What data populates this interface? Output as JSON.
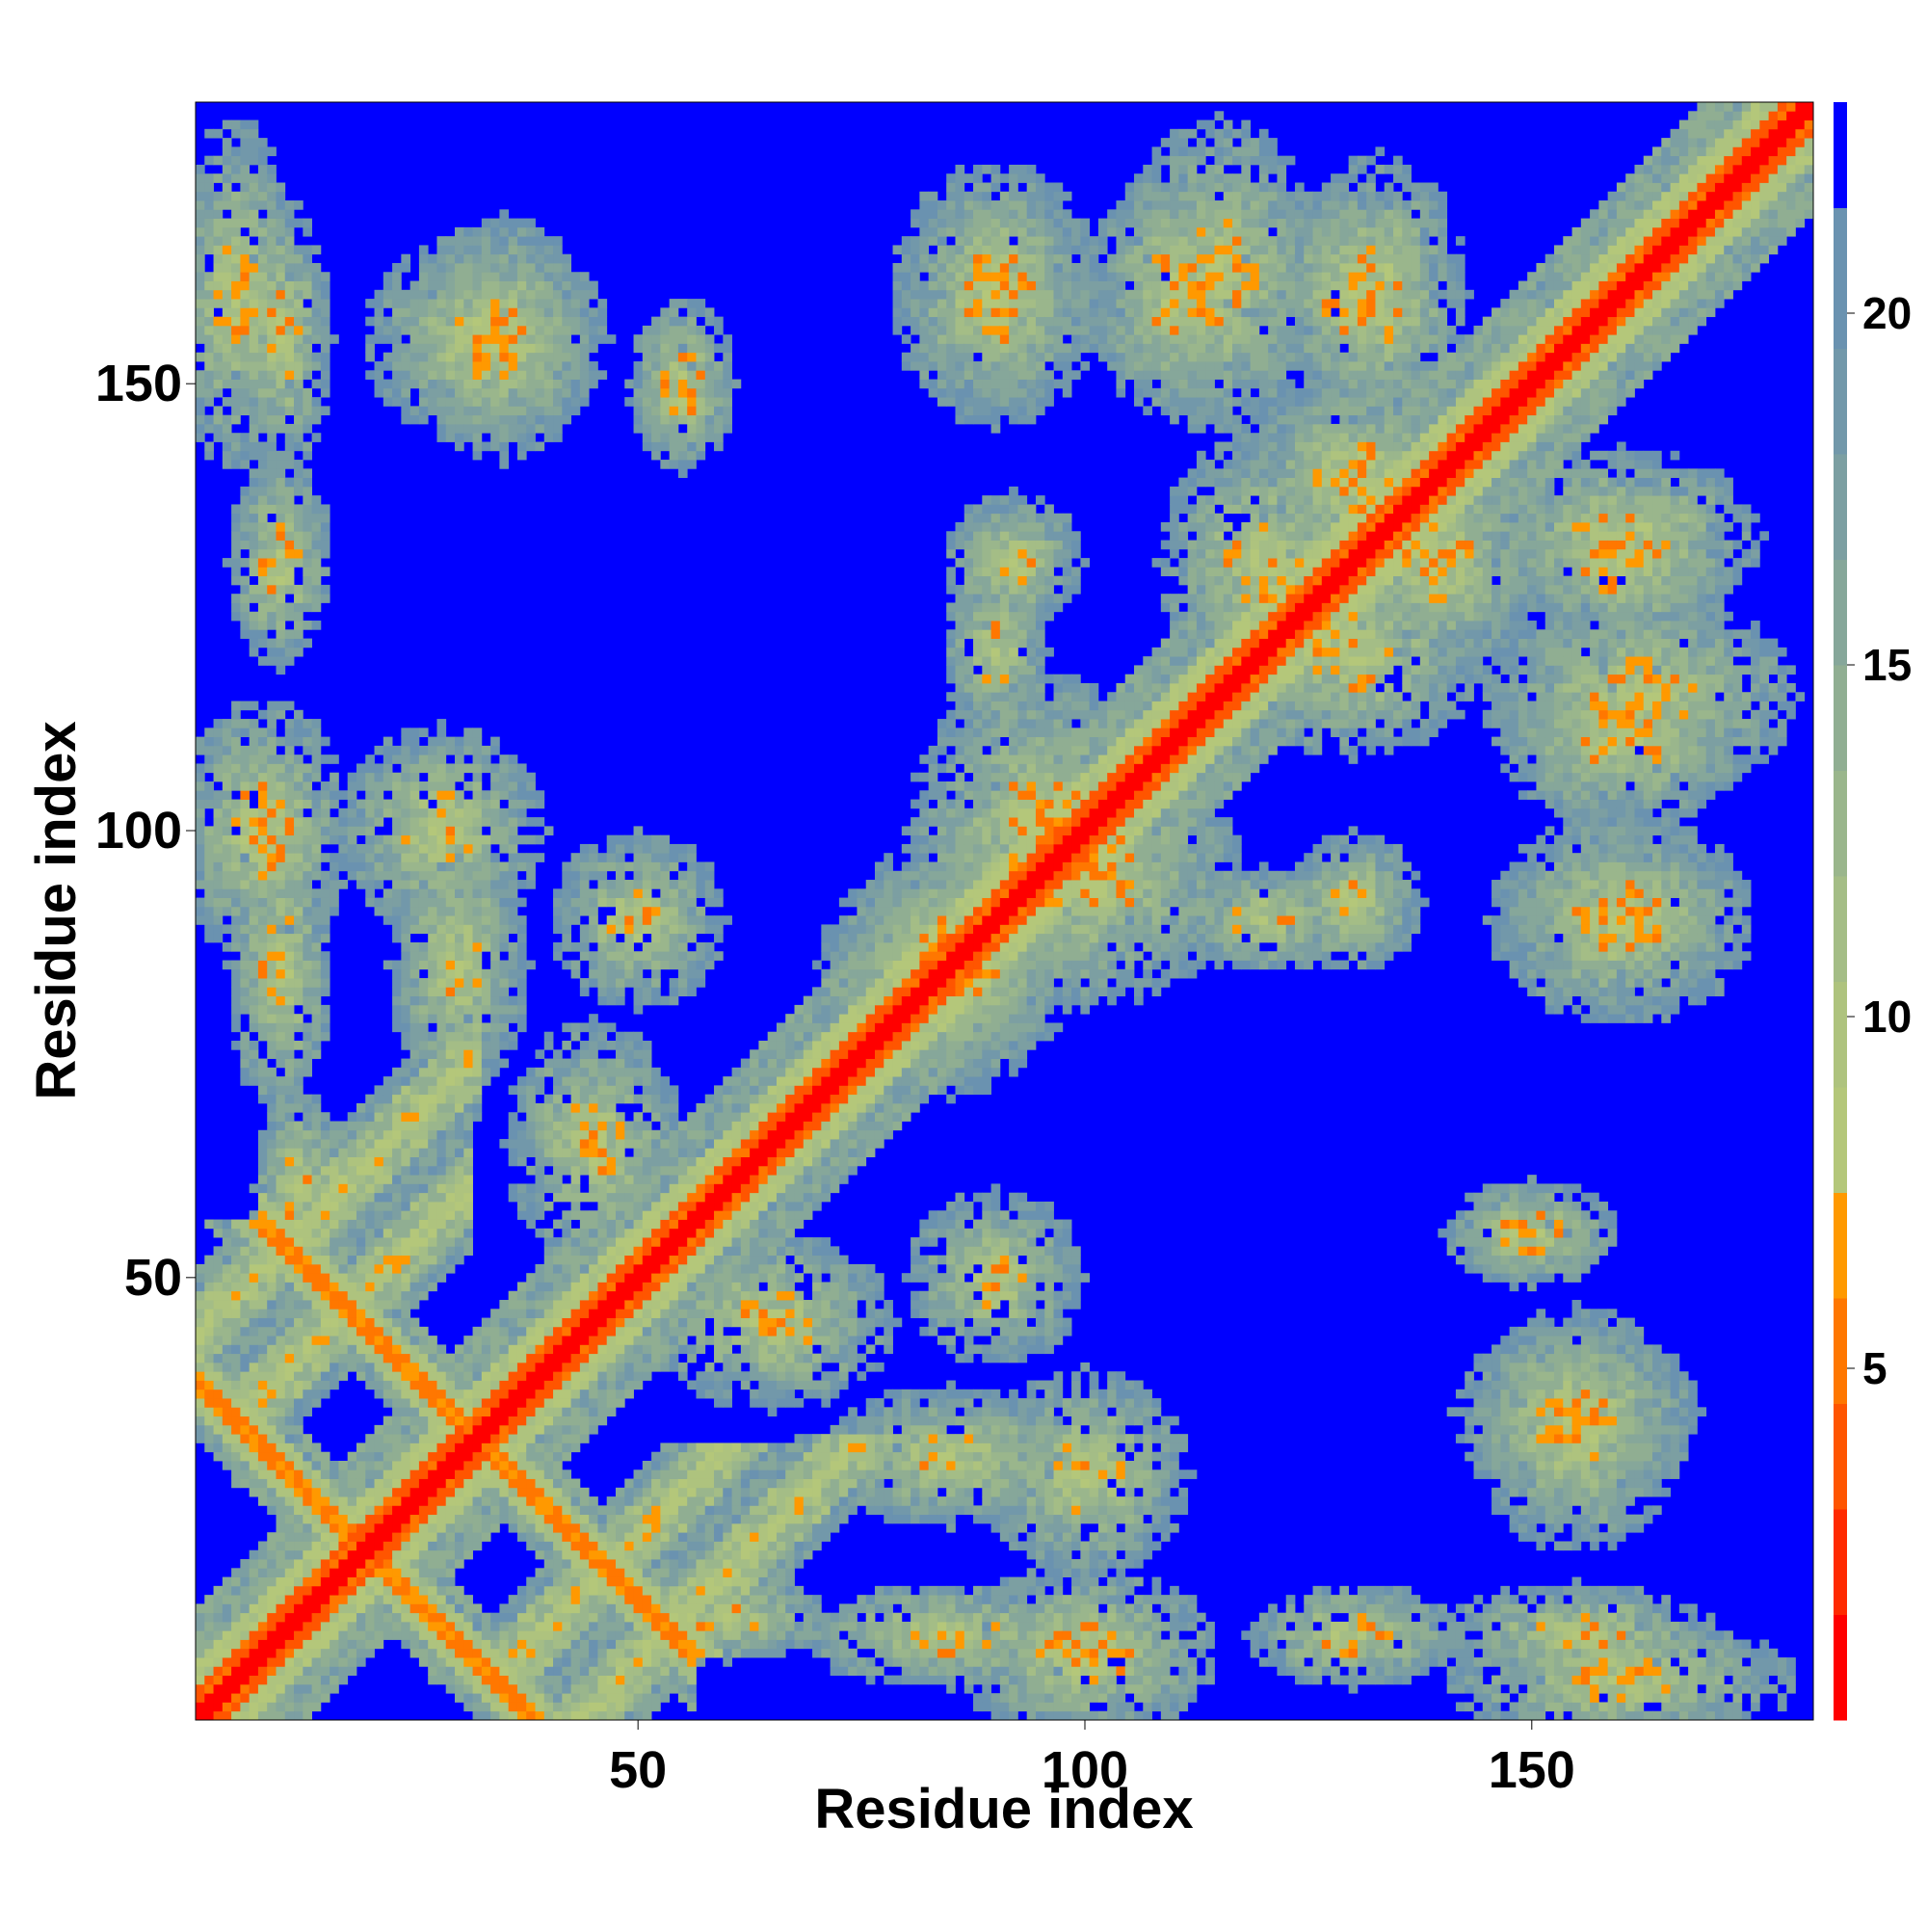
{
  "chart_data": {
    "type": "heatmap",
    "title": "",
    "xlabel": "Residue index",
    "ylabel": "Residue index",
    "xlim": [
      1,
      181
    ],
    "ylim": [
      1,
      181
    ],
    "n_residues": 181,
    "x_ticks": [
      50,
      100,
      150
    ],
    "y_ticks": [
      50,
      100,
      150
    ],
    "x_tick_labels": [
      "50",
      "100",
      "150"
    ],
    "y_tick_labels": [
      "50",
      "100",
      "150"
    ],
    "colorbar": {
      "range": [
        0,
        23
      ],
      "ticks": [
        5,
        10,
        15,
        20
      ],
      "tick_labels": [
        "5",
        "10",
        "15",
        "20"
      ],
      "levels": [
        {
          "min": 0,
          "max": 1.5,
          "color": "#ff0000"
        },
        {
          "min": 1.5,
          "max": 3,
          "color": "#ff2a00"
        },
        {
          "min": 3,
          "max": 4.5,
          "color": "#ff5500"
        },
        {
          "min": 4.5,
          "max": 6,
          "color": "#ff7700"
        },
        {
          "min": 6,
          "max": 7.5,
          "color": "#ff9900"
        },
        {
          "min": 7.5,
          "max": 9,
          "color": "#b4c77a"
        },
        {
          "min": 9,
          "max": 10.5,
          "color": "#aec37e"
        },
        {
          "min": 10.5,
          "max": 12,
          "color": "#a4bd86"
        },
        {
          "min": 12,
          "max": 13.5,
          "color": "#9ab68c"
        },
        {
          "min": 13.5,
          "max": 15,
          "color": "#90ae92"
        },
        {
          "min": 15,
          "max": 16.5,
          "color": "#86a79a"
        },
        {
          "min": 16.5,
          "max": 18,
          "color": "#7c9fa2"
        },
        {
          "min": 18,
          "max": 19.5,
          "color": "#7298aa"
        },
        {
          "min": 19.5,
          "max": 21.5,
          "color": "#6a92b0"
        },
        {
          "min": 21.5,
          "max": 23,
          "color": "#0000ff"
        }
      ]
    },
    "background_value": 23,
    "description_of_structure": "symmetric residue-residue distance map",
    "bands": [
      {
        "type": "diagonal",
        "from": 1,
        "to": 181,
        "width": 9
      },
      {
        "type": "antidiagonal",
        "sum": 39,
        "from": 1,
        "to": 38,
        "width": 3
      },
      {
        "type": "antidiagonal",
        "sum": 64,
        "from": 8,
        "to": 56,
        "width": 3
      },
      {
        "type": "parallel",
        "offset": 29,
        "from": 34,
        "to": 60,
        "width": 4
      },
      {
        "type": "parallel",
        "offset": 43,
        "from": 40,
        "to": 75,
        "width": 4
      }
    ],
    "blobs": [
      {
        "x": 5,
        "y": 160,
        "rx": 7,
        "ry": 20
      },
      {
        "x": 33,
        "y": 155,
        "rx": 14,
        "ry": 12
      },
      {
        "x": 55,
        "y": 148,
        "rx": 6,
        "ry": 6
      },
      {
        "x": 8,
        "y": 100,
        "rx": 10,
        "ry": 15
      },
      {
        "x": 28,
        "y": 100,
        "rx": 12,
        "ry": 12
      },
      {
        "x": 85,
        "y": 30,
        "rx": 15,
        "ry": 8
      },
      {
        "x": 85,
        "y": 10,
        "rx": 18,
        "ry": 6
      },
      {
        "x": 60,
        "y": 12,
        "rx": 12,
        "ry": 5
      },
      {
        "x": 90,
        "y": 160,
        "rx": 12,
        "ry": 15
      },
      {
        "x": 115,
        "y": 162,
        "rx": 12,
        "ry": 18
      },
      {
        "x": 133,
        "y": 160,
        "rx": 10,
        "ry": 16
      },
      {
        "x": 120,
        "y": 130,
        "rx": 12,
        "ry": 15
      },
      {
        "x": 140,
        "y": 130,
        "rx": 12,
        "ry": 12
      },
      {
        "x": 160,
        "y": 130,
        "rx": 12,
        "ry": 10
      },
      {
        "x": 160,
        "y": 110,
        "rx": 14,
        "ry": 10
      },
      {
        "x": 160,
        "y": 90,
        "rx": 12,
        "ry": 8
      },
      {
        "x": 130,
        "y": 92,
        "rx": 8,
        "ry": 8
      },
      {
        "x": 150,
        "y": 55,
        "rx": 10,
        "ry": 6
      },
      {
        "x": 155,
        "y": 35,
        "rx": 14,
        "ry": 10
      },
      {
        "x": 155,
        "y": 10,
        "rx": 16,
        "ry": 6
      },
      {
        "x": 130,
        "y": 10,
        "rx": 12,
        "ry": 6
      },
      {
        "x": 95,
        "y": 100,
        "rx": 15,
        "ry": 18
      },
      {
        "x": 85,
        "y": 85,
        "rx": 15,
        "ry": 12
      },
      {
        "x": 90,
        "y": 120,
        "rx": 6,
        "ry": 10
      },
      {
        "x": 65,
        "y": 45,
        "rx": 14,
        "ry": 10
      },
      {
        "x": 50,
        "y": 90,
        "rx": 10,
        "ry": 10
      }
    ]
  }
}
